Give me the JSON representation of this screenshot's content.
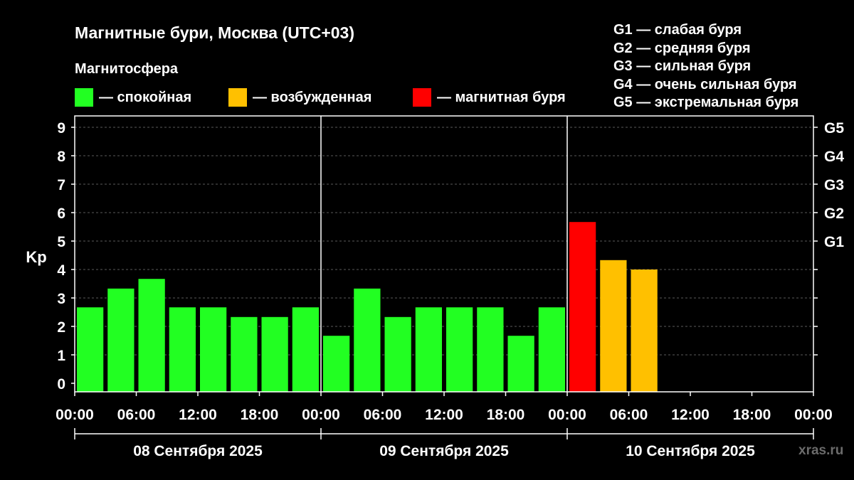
{
  "title": "Магнитные бури, Москва (UTC+03)",
  "magnetosphere": {
    "heading": "Магнитосфера",
    "legend": [
      {
        "label": "— спокойная",
        "color": "#22ff22"
      },
      {
        "label": "— возбужденная",
        "color": "#ffc000"
      },
      {
        "label": "— магнитная буря",
        "color": "#ff0000"
      }
    ]
  },
  "g_levels": [
    "G1 — слабая буря",
    "G2 — средняя буря",
    "G3 — сильная буря",
    "G4 — очень сильная буря",
    "G5 — экстремальная буря"
  ],
  "watermark": "xras.ru",
  "chart_data": {
    "type": "bar",
    "ylabel": "Kp",
    "ylim": [
      0,
      9
    ],
    "y_ticks": [
      0,
      1,
      2,
      3,
      4,
      5,
      6,
      7,
      8,
      9
    ],
    "right_axis_ticks": [
      {
        "value": 5,
        "label": "G1"
      },
      {
        "value": 6,
        "label": "G2"
      },
      {
        "value": 7,
        "label": "G3"
      },
      {
        "value": 8,
        "label": "G4"
      },
      {
        "value": 9,
        "label": "G5"
      }
    ],
    "x_tick_labels": [
      "00:00",
      "06:00",
      "12:00",
      "18:00",
      "00:00",
      "06:00",
      "12:00",
      "18:00",
      "00:00",
      "06:00",
      "12:00",
      "18:00",
      "00:00"
    ],
    "days": [
      "08 Сентября 2025",
      "09 Сентября 2025",
      "10 Сентября 2025"
    ],
    "interval_hours": 3,
    "categories": [
      "08 Сентября 2025 00:00",
      "08 Сентября 2025 03:00",
      "08 Сентября 2025 06:00",
      "08 Сентября 2025 09:00",
      "08 Сентября 2025 12:00",
      "08 Сентября 2025 15:00",
      "08 Сентября 2025 18:00",
      "08 Сентября 2025 21:00",
      "09 Сентября 2025 00:00",
      "09 Сентября 2025 03:00",
      "09 Сентября 2025 06:00",
      "09 Сентября 2025 09:00",
      "09 Сентября 2025 12:00",
      "09 Сентября 2025 15:00",
      "09 Сентября 2025 18:00",
      "09 Сентября 2025 21:00",
      "10 Сентября 2025 00:00",
      "10 Сентября 2025 03:00",
      "10 Сентября 2025 06:00"
    ],
    "values": [
      2.67,
      3.33,
      3.67,
      2.67,
      2.67,
      2.33,
      2.33,
      2.67,
      1.67,
      3.33,
      2.33,
      2.67,
      2.67,
      2.67,
      1.67,
      2.67,
      5.67,
      4.33,
      4.0
    ],
    "colors": {
      "quiet": "#22ff22",
      "unsettled": "#ffc000",
      "storm": "#ff0000"
    },
    "grid": "dashed horizontal lines at each integer Kp"
  }
}
